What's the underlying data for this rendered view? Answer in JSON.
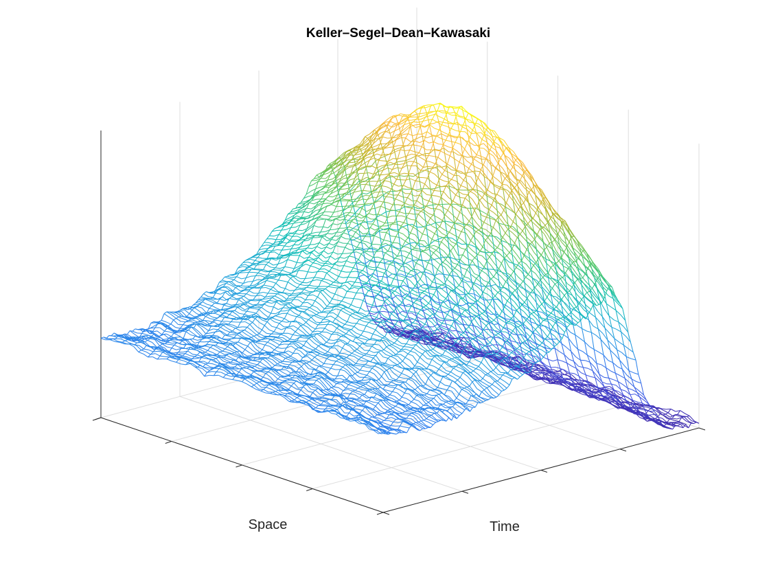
{
  "chart_data": {
    "type": "surface",
    "title": "Keller–Segel–Dean–Kawasaki",
    "xlabel": "Space",
    "ylabel": "Time",
    "zlabel": "",
    "x_range": [
      0,
      1
    ],
    "y_range": [
      0,
      1
    ],
    "ticks_x": 4,
    "ticks_y": 4,
    "grid": true,
    "box": false,
    "colormap": "parula",
    "colors": [
      "#3e26a8",
      "#4653df",
      "#2f7fee",
      "#21a5da",
      "#10bfb4",
      "#5bc863",
      "#c3b72f",
      "#fbb93c",
      "#f9fb15"
    ],
    "surface_trend": {
      "description_values_only": "approximate density profile along time and space",
      "initial_level": 0.28,
      "peak_level": 1.0,
      "peak_time": 0.72,
      "peak_space": 0.45,
      "final_level": 0.03,
      "noise_amplitude": 0.03
    }
  }
}
